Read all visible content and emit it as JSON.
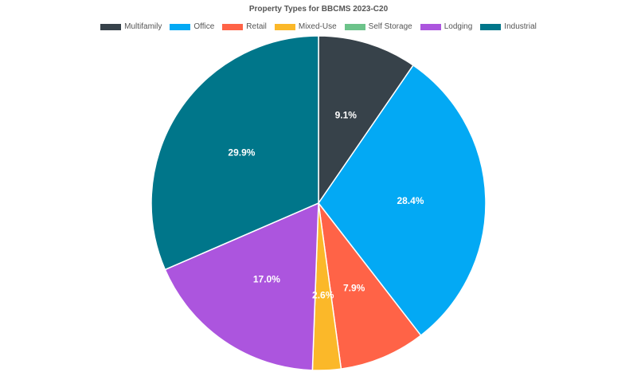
{
  "chart_data": {
    "type": "pie",
    "title": "Property Types for BBCMS 2023-C20",
    "legend_position": "top",
    "slices": [
      {
        "name": "Multifamily",
        "value": 9.1,
        "label": "9.1%",
        "color": "#37424a"
      },
      {
        "name": "Office",
        "value": 28.4,
        "label": "28.4%",
        "color": "#03a9f4"
      },
      {
        "name": "Retail",
        "value": 7.9,
        "label": "7.9%",
        "color": "#ff6347"
      },
      {
        "name": "Mixed-Use",
        "value": 2.6,
        "label": "2.6%",
        "color": "#fbb829"
      },
      {
        "name": "Self Storage",
        "value": 0.0,
        "label": "",
        "color": "#6cc38a"
      },
      {
        "name": "Lodging",
        "value": 17.0,
        "label": "17.0%",
        "color": "#ac55de"
      },
      {
        "name": "Industrial",
        "value": 29.9,
        "label": "29.9%",
        "color": "#00768a"
      }
    ]
  }
}
